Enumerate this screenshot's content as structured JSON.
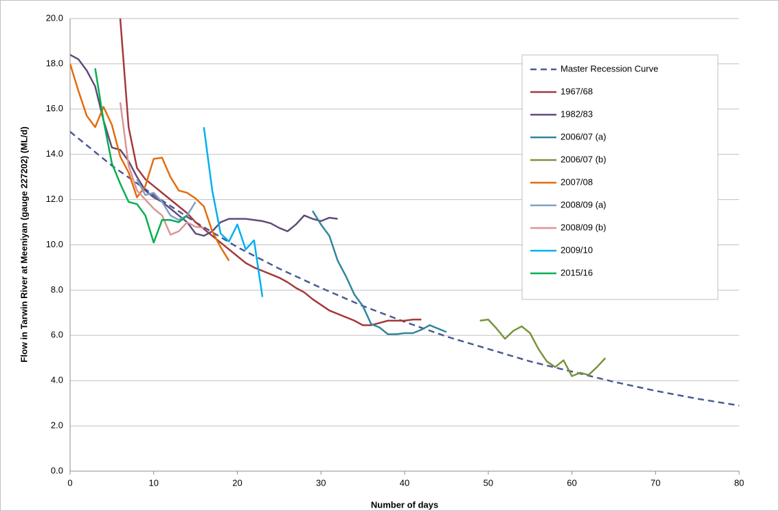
{
  "chart_data": {
    "type": "line",
    "x_label": "Number of days",
    "y_label": "Flow in Tarwin River at Meeniyan (gauge 227202) (ML/d)",
    "xlim": [
      0,
      80
    ],
    "xticks": [
      0,
      10,
      20,
      30,
      40,
      50,
      60,
      70,
      80
    ],
    "ylim": [
      0,
      20
    ],
    "yticks": [
      {
        "value": 0,
        "label": "0.0"
      },
      {
        "value": 2,
        "label": "2.0"
      },
      {
        "value": 4,
        "label": "4.0"
      },
      {
        "value": 6,
        "label": "6.0"
      },
      {
        "value": 8,
        "label": "8.0"
      },
      {
        "value": 10,
        "label": "10.0"
      },
      {
        "value": 12,
        "label": "12.0"
      },
      {
        "value": 14,
        "label": "14.0"
      },
      {
        "value": 16,
        "label": "16.0"
      },
      {
        "value": 18,
        "label": "18.0"
      },
      {
        "value": 20,
        "label": "20.0"
      }
    ],
    "grid": true,
    "legend": "upper right",
    "series": [
      {
        "name": "Master Recession Curve",
        "color": "#4a5a94",
        "dashed": true,
        "x": [
          0,
          5,
          10,
          15,
          20,
          25,
          30,
          35,
          40,
          45,
          50,
          55,
          60,
          65,
          70,
          75,
          80
        ],
        "values": [
          15,
          13.5,
          12.2,
          11.0,
          9.9,
          8.95,
          8.1,
          7.3,
          6.6,
          5.95,
          5.4,
          4.85,
          4.4,
          3.95,
          3.55,
          3.2,
          2.9
        ]
      },
      {
        "name": "1967/68",
        "color": "#a5373a",
        "x": [
          6,
          7,
          8,
          9,
          10,
          11,
          12,
          13,
          14,
          15,
          16,
          17,
          18,
          19,
          20,
          21,
          22,
          23,
          24,
          25,
          26,
          27,
          28,
          29,
          30,
          31,
          32,
          33,
          34,
          35,
          36,
          37,
          38,
          39,
          40,
          41,
          42
        ],
        "values": [
          20,
          15.2,
          13.4,
          12.9,
          12.6,
          12.3,
          12.0,
          11.7,
          11.4,
          11.0,
          10.7,
          10.4,
          10.1,
          9.8,
          9.5,
          9.2,
          9.0,
          8.85,
          8.7,
          8.55,
          8.35,
          8.1,
          7.9,
          7.6,
          7.35,
          7.1,
          6.95,
          6.8,
          6.65,
          6.45,
          6.45,
          6.55,
          6.65,
          6.65,
          6.65,
          6.7,
          6.7
        ]
      },
      {
        "name": "1982/83",
        "color": "#5f4a7b",
        "x": [
          0,
          1,
          2,
          3,
          4,
          5,
          6,
          7,
          8,
          9,
          10,
          11,
          12,
          13,
          14,
          15,
          16,
          17,
          18,
          19,
          20,
          21,
          22,
          23,
          24,
          25,
          26,
          27,
          28,
          29,
          30,
          31,
          32
        ],
        "values": [
          18.4,
          18.2,
          17.7,
          17.0,
          15.5,
          14.3,
          14.2,
          13.7,
          13.0,
          12.4,
          12.1,
          11.9,
          11.6,
          11.3,
          11.0,
          10.5,
          10.4,
          10.6,
          11.0,
          11.15,
          11.15,
          11.15,
          11.1,
          11.05,
          10.95,
          10.75,
          10.6,
          10.9,
          11.3,
          11.15,
          11.05,
          11.2,
          11.15
        ]
      },
      {
        "name": "2006/07 (a)",
        "color": "#31869b",
        "x": [
          29,
          30,
          31,
          32,
          33,
          34,
          35,
          36,
          37,
          38,
          39,
          40,
          41,
          42,
          43,
          44,
          45
        ],
        "values": [
          11.5,
          10.9,
          10.4,
          9.3,
          8.6,
          7.8,
          7.3,
          6.5,
          6.35,
          6.05,
          6.05,
          6.1,
          6.1,
          6.25,
          6.45,
          6.3,
          6.15
        ]
      },
      {
        "name": "2006/07 (b)",
        "color": "#77933c",
        "x": [
          49,
          50,
          51,
          52,
          53,
          54,
          55,
          56,
          57,
          58,
          59,
          60,
          61,
          62,
          63,
          64
        ],
        "values": [
          6.65,
          6.7,
          6.3,
          5.85,
          6.2,
          6.4,
          6.1,
          5.4,
          4.85,
          4.6,
          4.9,
          4.2,
          4.35,
          4.25,
          4.6,
          5.0
        ]
      },
      {
        "name": "2007/08",
        "color": "#e46c0a",
        "x": [
          0,
          1,
          2,
          3,
          4,
          5,
          6,
          7,
          8,
          9,
          10,
          11,
          12,
          13,
          14,
          15,
          16,
          17,
          18,
          19
        ],
        "values": [
          18.0,
          16.8,
          15.7,
          15.2,
          16.1,
          15.3,
          13.9,
          13.2,
          12.1,
          12.6,
          13.8,
          13.85,
          13.0,
          12.4,
          12.3,
          12.05,
          11.7,
          10.6,
          9.9,
          9.3
        ]
      },
      {
        "name": "2008/09 (a)",
        "color": "#7f9fc4",
        "x": [
          8,
          9,
          10,
          11,
          12,
          13,
          14,
          15
        ],
        "values": [
          12.9,
          12.2,
          12.3,
          11.9,
          11.3,
          11.1,
          11.3,
          11.9
        ]
      },
      {
        "name": "2008/09 (b)",
        "color": "#d99694",
        "x": [
          6,
          7,
          8,
          9,
          10,
          11,
          12,
          13,
          14,
          15,
          16
        ],
        "values": [
          16.3,
          13.5,
          12.4,
          12.0,
          11.6,
          11.3,
          10.45,
          10.6,
          11.0,
          10.8,
          10.75
        ]
      },
      {
        "name": "2009/10",
        "color": "#00b0f0",
        "x": [
          16,
          17,
          18,
          19,
          20,
          21,
          22,
          23
        ],
        "values": [
          15.2,
          12.4,
          10.5,
          10.15,
          10.9,
          9.8,
          10.2,
          7.7
        ]
      },
      {
        "name": "2015/16",
        "color": "#00b050",
        "x": [
          3,
          4,
          5,
          6,
          7,
          8,
          9,
          10,
          11,
          12,
          13,
          14
        ],
        "values": [
          17.8,
          15.5,
          13.6,
          12.7,
          11.9,
          11.8,
          11.3,
          10.1,
          11.1,
          11.1,
          11.0,
          11.3
        ]
      }
    ]
  }
}
